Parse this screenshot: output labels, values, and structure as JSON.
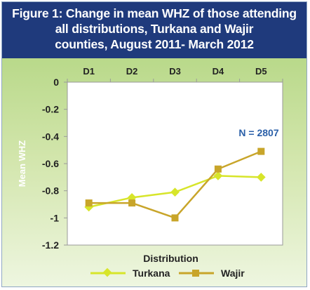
{
  "figure": {
    "title_lines": [
      "Figure 1: Change in mean WHZ of those attending",
      "all distributions, Turkana and Wajir",
      "counties, August 2011- March 2012"
    ]
  },
  "colors": {
    "header_bg": "#1f3a7c",
    "turkana": "#d7e52a",
    "wajir": "#c8a52a",
    "annotation": "#2a5fa8"
  },
  "chart_data": {
    "type": "line",
    "title": "Figure 1: Change in mean WHZ of those attending all distributions, Turkana and Wajir counties, August 2011- March 2012",
    "categories": [
      "D1",
      "D2",
      "D3",
      "D4",
      "D5"
    ],
    "series": [
      {
        "name": "Turkana",
        "values": [
          -0.92,
          -0.85,
          -0.81,
          -0.69,
          -0.7
        ],
        "marker": "diamond"
      },
      {
        "name": "Wajir",
        "values": [
          -0.89,
          -0.89,
          -1.0,
          -0.64,
          -0.51
        ],
        "marker": "square"
      }
    ],
    "xlabel": "Distribution",
    "ylabel": "Mean WHZ",
    "ylim": [
      -1.2,
      0
    ],
    "yticks": [
      0,
      -0.2,
      -0.4,
      -0.6,
      -0.8,
      -1,
      -1.2
    ],
    "ytick_labels": [
      "0",
      "-0.2",
      "-0.4",
      "-0.6",
      "-0.8",
      "-1",
      "-1.2"
    ],
    "x_axis_position": "top",
    "grid": false,
    "legend_position": "bottom",
    "annotation": "N = 2807"
  }
}
